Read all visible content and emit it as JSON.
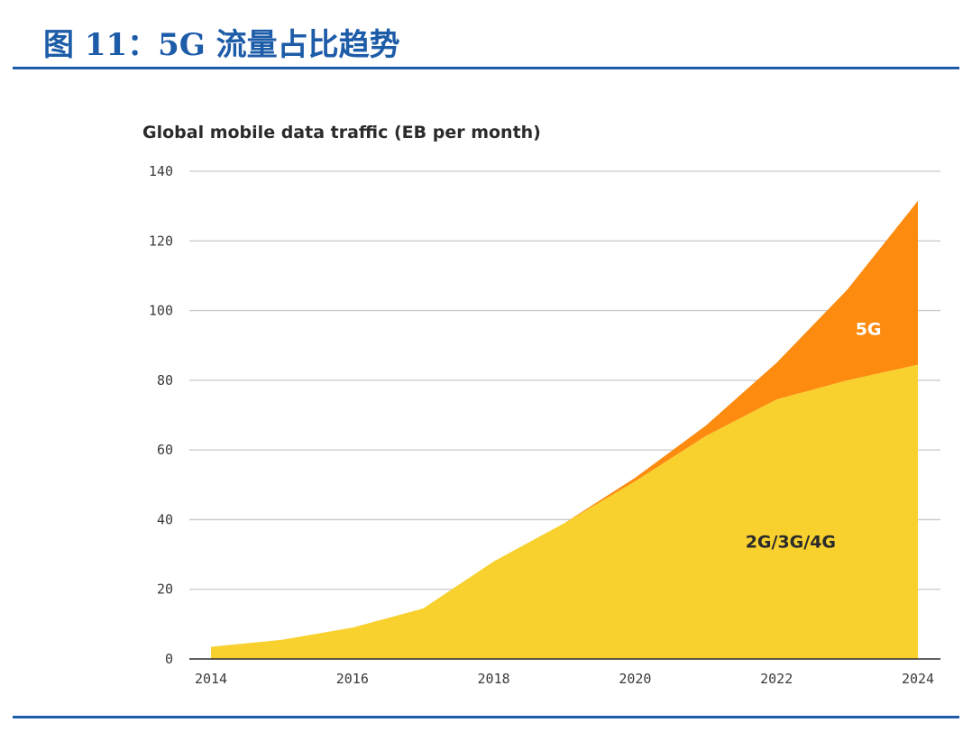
{
  "figure": {
    "title": "图 11：5G 流量占比趋势"
  },
  "chart_data": {
    "type": "area",
    "stacked": true,
    "title": "Global mobile data traffic (EB per month)",
    "xlabel": "",
    "ylabel": "",
    "x": [
      2014,
      2015,
      2016,
      2017,
      2018,
      2019,
      2020,
      2021,
      2022,
      2023,
      2024
    ],
    "xticks": [
      "2014",
      "2016",
      "2018",
      "2020",
      "2022",
      "2024"
    ],
    "xlim": [
      2014,
      2024
    ],
    "ylim": [
      0,
      140
    ],
    "yticks": [
      "0",
      "20",
      "40",
      "60",
      "80",
      "100",
      "120",
      "140"
    ],
    "grid": true,
    "series": [
      {
        "name": "2G/3G/4G",
        "color": "#f8d12f",
        "values": [
          3.5,
          5.5,
          9,
          14.5,
          28,
          39,
          51,
          64,
          74.5,
          80,
          84.5
        ]
      },
      {
        "name": "5G",
        "color": "#fd8b0f",
        "values": [
          0,
          0,
          0,
          0,
          0,
          0,
          1,
          3,
          10.5,
          26,
          47
        ]
      }
    ],
    "series_labels": [
      {
        "text": "5G",
        "x": 2023.3,
        "y": 93
      },
      {
        "text": "2G/3G/4G",
        "x": 2022.2,
        "y": 32
      }
    ]
  }
}
